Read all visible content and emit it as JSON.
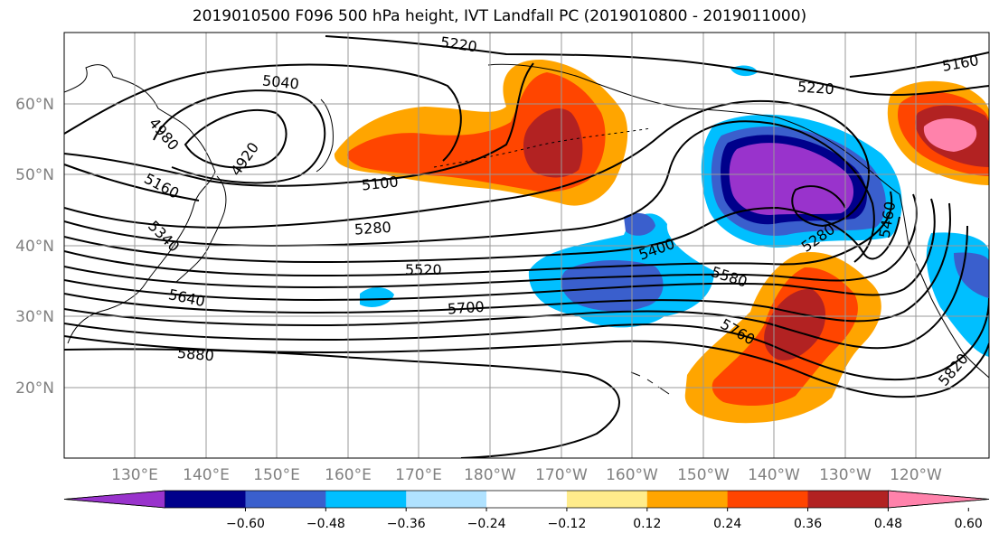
{
  "title": "2019010500 F096 500 hPa height, IVT Landfall PC (2019010800 - 2019011000)",
  "map": {
    "lat_labels": [
      "60°N",
      "50°N",
      "40°N",
      "30°N",
      "20°N"
    ],
    "lon_labels": [
      "130°E",
      "140°E",
      "150°E",
      "160°E",
      "170°E",
      "180°W",
      "170°W",
      "160°W",
      "150°W",
      "140°W",
      "130°W",
      "120°W"
    ],
    "contour_labels": [
      "5220",
      "5160",
      "5040",
      "5220",
      "4980",
      "4920",
      "5100",
      "5160",
      "5340",
      "5280",
      "5400",
      "5280",
      "5460",
      "5520",
      "5580",
      "5640",
      "5700",
      "5760",
      "5880",
      "5820"
    ],
    "gridlines": true,
    "coastlines": true
  },
  "colorbar": {
    "tick_labels": [
      "−0.60",
      "−0.48",
      "−0.36",
      "−0.24",
      "−0.12",
      "0.12",
      "0.24",
      "0.36",
      "0.48",
      "0.60"
    ],
    "colors": [
      "#9933cc",
      "#00008b",
      "#3a5fcd",
      "#00bfff",
      "#b0e2ff",
      "#ffffff",
      "#ffec8b",
      "#ffa500",
      "#ff4500",
      "#b22222",
      "#ff82ab"
    ],
    "extend": "both"
  }
}
